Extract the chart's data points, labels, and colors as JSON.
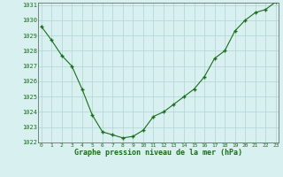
{
  "x": [
    0,
    1,
    2,
    3,
    4,
    5,
    6,
    7,
    8,
    9,
    10,
    11,
    12,
    13,
    14,
    15,
    16,
    17,
    18,
    19,
    20,
    21,
    22,
    23
  ],
  "y": [
    1029.6,
    1028.7,
    1027.7,
    1027.0,
    1025.5,
    1023.8,
    1022.7,
    1022.5,
    1022.3,
    1022.4,
    1022.8,
    1023.7,
    1024.0,
    1024.5,
    1025.0,
    1025.5,
    1026.3,
    1027.5,
    1028.0,
    1029.3,
    1030.0,
    1030.5,
    1030.7,
    1031.2
  ],
  "line_color": "#1a6e1a",
  "marker_color": "#1a6e1a",
  "bg_color": "#d8f0f0",
  "grid_color": "#b0d4d4",
  "xlabel": "Graphe pression niveau de la mer (hPa)",
  "xlabel_color": "#1a6e1a",
  "tick_color": "#1a6e1a",
  "ylim_min": 1022,
  "ylim_max": 1031,
  "yticks": [
    1022,
    1023,
    1024,
    1025,
    1026,
    1027,
    1028,
    1029,
    1030,
    1031
  ],
  "xticks": [
    0,
    1,
    2,
    3,
    4,
    5,
    6,
    7,
    8,
    9,
    10,
    11,
    12,
    13,
    14,
    15,
    16,
    17,
    18,
    19,
    20,
    21,
    22,
    23
  ],
  "spine_color": "#555555"
}
